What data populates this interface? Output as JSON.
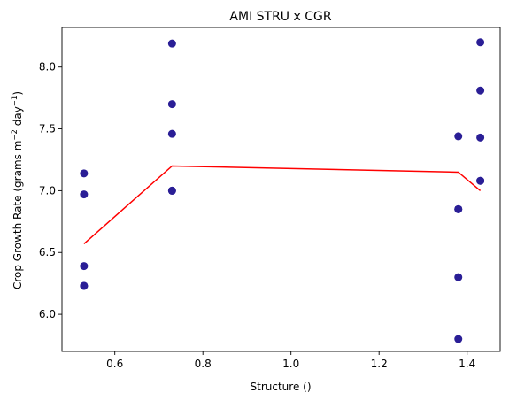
{
  "chart_data": {
    "type": "scatter",
    "title": "AMI STRU x CGR",
    "xlabel": "Structure ()",
    "ylabel": "Crop Growth Rate (grams m",
    "ylabel_sup1": "−2",
    "ylabel_mid": " day",
    "ylabel_sup2": "−1",
    "ylabel_end": ")",
    "xlim": [
      0.48,
      1.475
    ],
    "ylim": [
      5.7,
      8.32
    ],
    "xticks": [
      0.6,
      0.8,
      1.0,
      1.2,
      1.4
    ],
    "xtick_labels": [
      "0.6",
      "0.8",
      "1.0",
      "1.2",
      "1.4"
    ],
    "yticks": [
      6.0,
      6.5,
      7.0,
      7.5,
      8.0
    ],
    "ytick_labels": [
      "6.0",
      "6.5",
      "7.0",
      "7.5",
      "8.0"
    ],
    "grid": false,
    "scatter": {
      "color": "#2a1e96",
      "points": [
        {
          "x": 0.53,
          "y": 7.14
        },
        {
          "x": 0.53,
          "y": 6.97
        },
        {
          "x": 0.53,
          "y": 6.39
        },
        {
          "x": 0.53,
          "y": 6.23
        },
        {
          "x": 0.53,
          "y": 6.23
        },
        {
          "x": 0.73,
          "y": 8.19
        },
        {
          "x": 0.73,
          "y": 7.7
        },
        {
          "x": 0.73,
          "y": 7.46
        },
        {
          "x": 0.73,
          "y": 7.0
        },
        {
          "x": 0.73,
          "y": 7.0
        },
        {
          "x": 1.38,
          "y": 7.44
        },
        {
          "x": 1.38,
          "y": 6.85
        },
        {
          "x": 1.38,
          "y": 6.85
        },
        {
          "x": 1.38,
          "y": 6.3
        },
        {
          "x": 1.38,
          "y": 5.8
        },
        {
          "x": 1.43,
          "y": 8.2
        },
        {
          "x": 1.43,
          "y": 7.81
        },
        {
          "x": 1.43,
          "y": 7.43
        },
        {
          "x": 1.43,
          "y": 7.08
        },
        {
          "x": 1.43,
          "y": 7.08
        }
      ]
    },
    "line": {
      "color": "#ff0000",
      "points": [
        {
          "x": 0.53,
          "y": 6.57
        },
        {
          "x": 0.73,
          "y": 7.2
        },
        {
          "x": 1.38,
          "y": 7.15
        },
        {
          "x": 1.43,
          "y": 7.0
        }
      ]
    }
  }
}
